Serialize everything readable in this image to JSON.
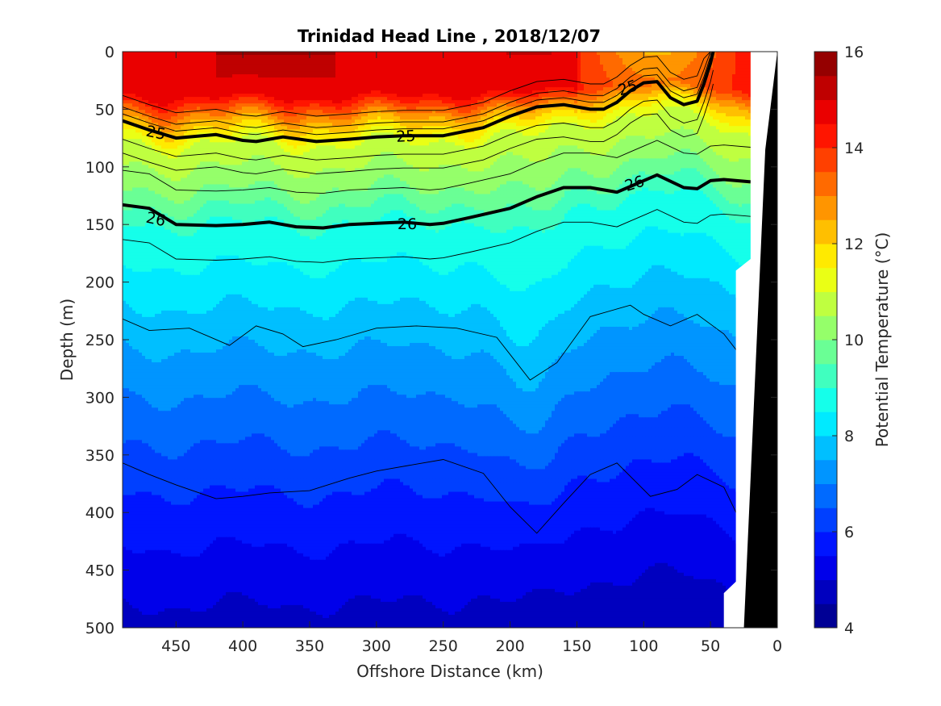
{
  "chart_data": {
    "type": "heatmap",
    "title": "Trinidad Head Line , 2018/12/07",
    "xlabel": "Offshore Distance (km)",
    "ylabel": "Depth (m)",
    "xlim": [
      490,
      0
    ],
    "ylim": [
      500,
      0
    ],
    "x_reversed": true,
    "y_reversed": true,
    "x_ticks": [
      450,
      400,
      350,
      300,
      250,
      200,
      150,
      100,
      50,
      0
    ],
    "y_ticks": [
      0,
      50,
      100,
      150,
      200,
      250,
      300,
      350,
      400,
      450,
      500
    ],
    "colorbar": {
      "label": "Potential Temperature (°C)",
      "min": 4,
      "max": 16,
      "step": 0.5,
      "ticks": [
        4,
        6,
        8,
        10,
        12,
        14,
        16
      ],
      "colormap": "jet"
    },
    "temperature_profile_offshore": {
      "depth": [
        0,
        40,
        60,
        80,
        120,
        150,
        200,
        250,
        300,
        350,
        400,
        450,
        500
      ],
      "temperature": [
        15.0,
        14.5,
        12.5,
        11.0,
        10.0,
        9.0,
        8.3,
        7.6,
        7.0,
        6.4,
        5.8,
        5.3,
        4.8
      ]
    },
    "density_contours": [
      {
        "label": "25",
        "bold": true,
        "x": [
          490,
          470,
          450,
          420,
          400,
          390,
          370,
          345,
          320,
          300,
          280,
          250,
          220,
          200,
          180,
          160,
          140,
          130,
          120,
          110,
          100,
          90,
          80,
          70,
          60,
          55,
          50,
          48
        ],
        "depth": [
          60,
          68,
          75,
          72,
          77,
          78,
          74,
          78,
          76,
          74,
          73,
          73,
          66,
          56,
          48,
          46,
          50,
          50,
          44,
          34,
          27,
          26,
          40,
          46,
          43,
          28,
          10,
          0
        ]
      },
      {
        "label": "26",
        "bold": true,
        "x": [
          490,
          470,
          450,
          420,
          400,
          380,
          360,
          340,
          320,
          300,
          280,
          260,
          250,
          230,
          200,
          180,
          160,
          140,
          120,
          110,
          100,
          90,
          70,
          60,
          50,
          40,
          20
        ],
        "depth": [
          133,
          136,
          150,
          151,
          150,
          148,
          152,
          153,
          150,
          149,
          148,
          150,
          149,
          144,
          136,
          126,
          118,
          118,
          122,
          117,
          112,
          107,
          118,
          119,
          112,
          111,
          113
        ]
      }
    ],
    "contour_labels": [
      "25",
      "25",
      "25",
      "26",
      "26",
      "26"
    ],
    "bottom_mask_color": "#000000"
  }
}
